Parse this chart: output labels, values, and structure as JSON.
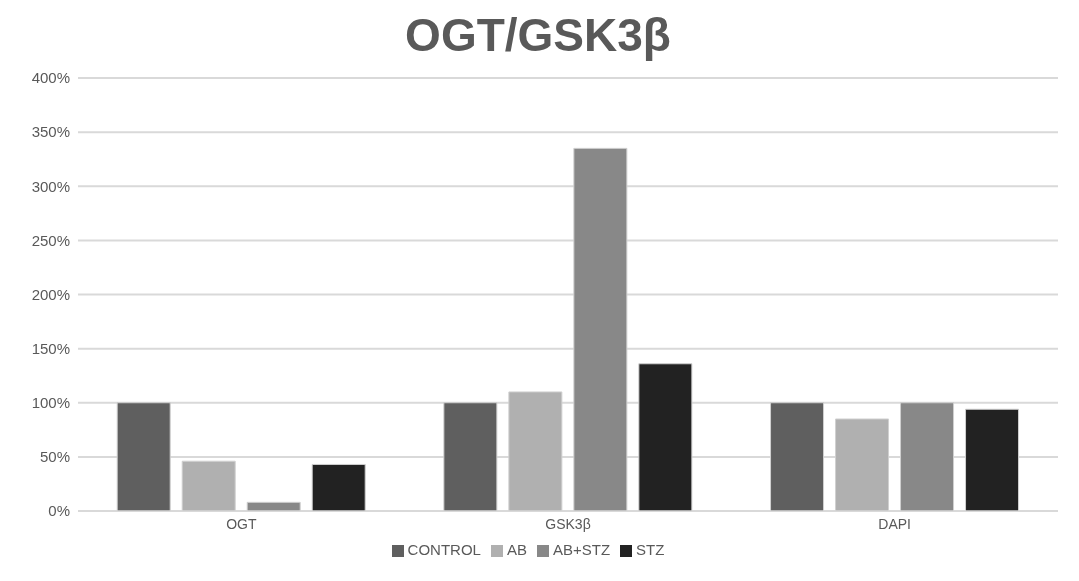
{
  "chart_data": {
    "type": "bar",
    "title": "OGT/GSK3β",
    "categories": [
      "OGT",
      "GSK3β",
      "DAPI"
    ],
    "series": [
      {
        "name": "CONTROL",
        "color": "#5f5f5f",
        "values": [
          100,
          100,
          100
        ]
      },
      {
        "name": "AB",
        "color": "#b0b0b0",
        "values": [
          46,
          110,
          85
        ]
      },
      {
        "name": "AB+STZ",
        "color": "#888888",
        "values": [
          8,
          335,
          100
        ]
      },
      {
        "name": "STZ",
        "color": "#222222",
        "values": [
          43,
          136,
          94
        ]
      }
    ],
    "ylim": [
      0,
      400
    ],
    "yticks": [
      {
        "value": 0,
        "label": "0%"
      },
      {
        "value": 50,
        "label": "50%"
      },
      {
        "value": 100,
        "label": "100%"
      },
      {
        "value": 150,
        "label": "150%"
      },
      {
        "value": 200,
        "label": "200%"
      },
      {
        "value": 250,
        "label": "250%"
      },
      {
        "value": 300,
        "label": "300%"
      },
      {
        "value": 350,
        "label": "350%"
      },
      {
        "value": 400,
        "label": "400%"
      }
    ],
    "grid": "y",
    "legend": "bottom"
  }
}
